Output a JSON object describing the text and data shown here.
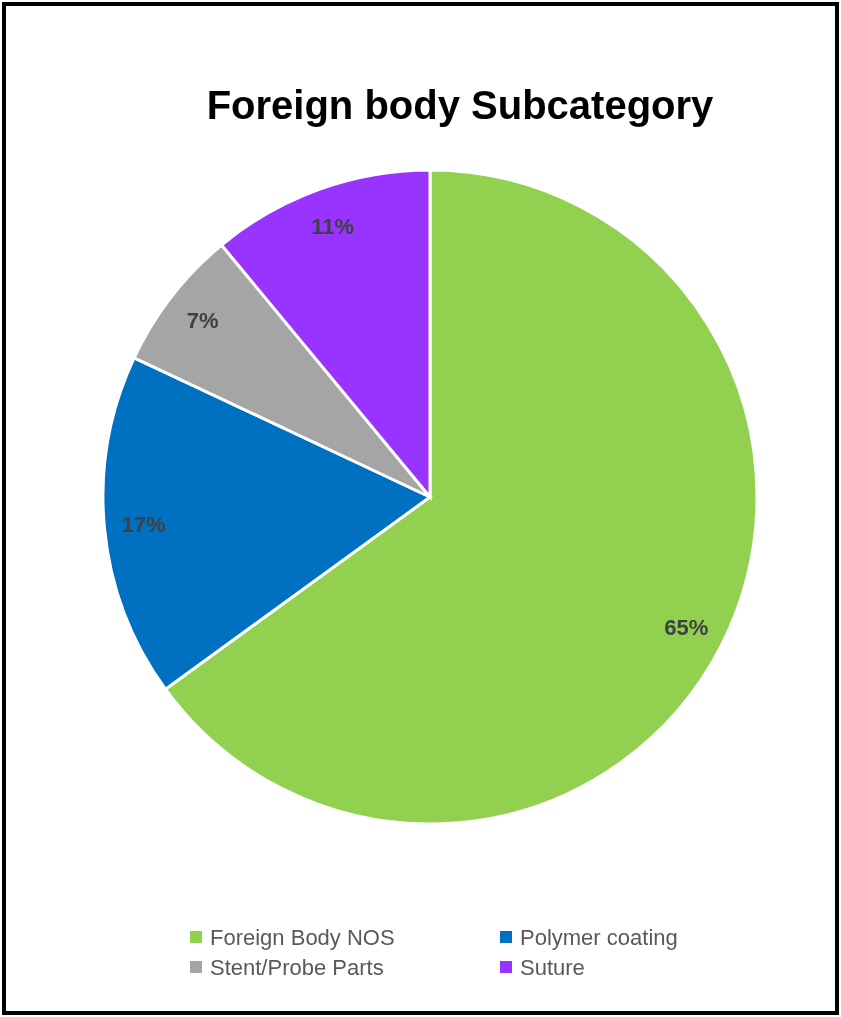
{
  "chart_data": {
    "type": "pie",
    "title": "Foreign body Subcategory",
    "categories": [
      "Foreign Body NOS",
      "Polymer coating",
      "Stent/Probe Parts",
      "Suture"
    ],
    "values": [
      65,
      17,
      7,
      11
    ],
    "colors": [
      "#92d050",
      "#0070c0",
      "#a5a5a5",
      "#9933ff"
    ],
    "value_labels": [
      "65%",
      "17%",
      "7%",
      "11%"
    ],
    "legend": "bottom"
  }
}
